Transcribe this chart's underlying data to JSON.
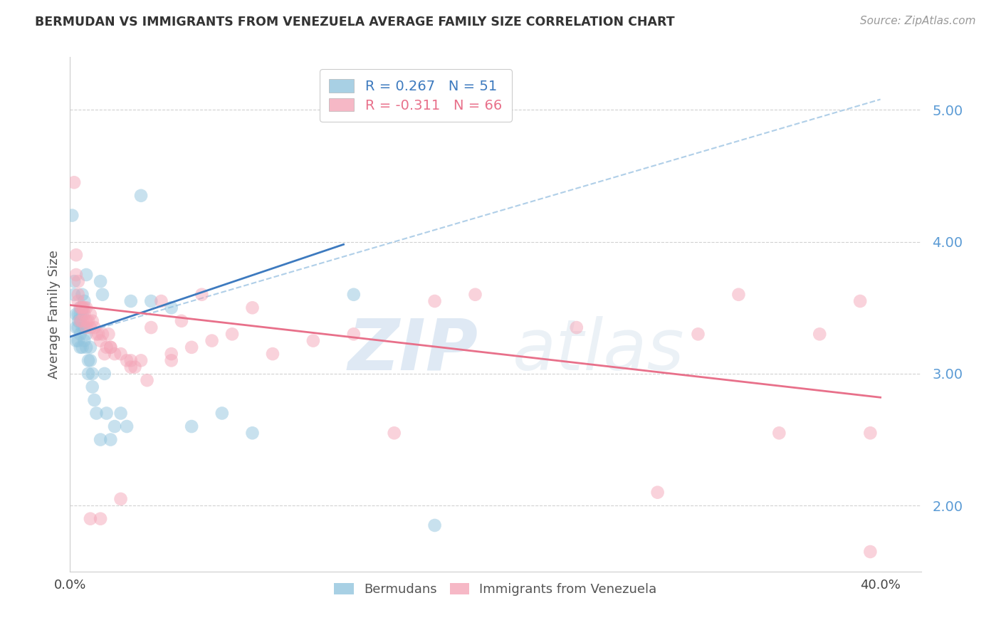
{
  "title": "BERMUDAN VS IMMIGRANTS FROM VENEZUELA AVERAGE FAMILY SIZE CORRELATION CHART",
  "source": "Source: ZipAtlas.com",
  "ylabel": "Average Family Size",
  "xlim": [
    0.0,
    0.42
  ],
  "ylim": [
    1.5,
    5.4
  ],
  "yticks": [
    2.0,
    3.0,
    4.0,
    5.0
  ],
  "xticks": [
    0.0,
    0.1,
    0.2,
    0.3,
    0.4
  ],
  "xtick_labels": [
    "0.0%",
    "",
    "",
    "",
    "40.0%"
  ],
  "legend_r_blue": "0.267",
  "legend_n_blue": "51",
  "legend_r_pink": "-0.311",
  "legend_n_pink": "66",
  "blue_label": "Bermudans",
  "pink_label": "Immigrants from Venezuela",
  "blue_color": "#92c5de",
  "pink_color": "#f4a6b8",
  "blue_line_color": "#3d7abf",
  "pink_line_color": "#e8708a",
  "dashed_line_color": "#b0cfe8",
  "watermark_zip": "ZIP",
  "watermark_atlas": "atlas",
  "blue_scatter_x": [
    0.001,
    0.002,
    0.002,
    0.003,
    0.003,
    0.003,
    0.004,
    0.004,
    0.004,
    0.005,
    0.005,
    0.005,
    0.005,
    0.006,
    0.006,
    0.006,
    0.007,
    0.007,
    0.008,
    0.008,
    0.009,
    0.009,
    0.01,
    0.01,
    0.011,
    0.011,
    0.012,
    0.013,
    0.015,
    0.016,
    0.017,
    0.018,
    0.02,
    0.022,
    0.025,
    0.028,
    0.03,
    0.035,
    0.04,
    0.05,
    0.06,
    0.075,
    0.09,
    0.14,
    0.18,
    0.015,
    0.008,
    0.006,
    0.007,
    0.005,
    0.004
  ],
  "blue_scatter_y": [
    4.2,
    3.6,
    3.7,
    3.45,
    3.35,
    3.25,
    3.45,
    3.35,
    3.25,
    3.45,
    3.4,
    3.3,
    3.2,
    3.45,
    3.35,
    3.2,
    3.35,
    3.25,
    3.3,
    3.2,
    3.1,
    3.0,
    3.2,
    3.1,
    3.0,
    2.9,
    2.8,
    2.7,
    2.5,
    3.6,
    3.0,
    2.7,
    2.5,
    2.6,
    2.7,
    2.6,
    3.55,
    4.35,
    3.55,
    3.5,
    2.6,
    2.7,
    2.55,
    3.6,
    1.85,
    3.7,
    3.75,
    3.6,
    3.55,
    3.5,
    3.4
  ],
  "pink_scatter_x": [
    0.002,
    0.003,
    0.004,
    0.004,
    0.005,
    0.005,
    0.006,
    0.006,
    0.007,
    0.007,
    0.008,
    0.008,
    0.009,
    0.01,
    0.01,
    0.011,
    0.012,
    0.013,
    0.014,
    0.015,
    0.016,
    0.017,
    0.018,
    0.019,
    0.02,
    0.022,
    0.025,
    0.028,
    0.03,
    0.032,
    0.035,
    0.038,
    0.04,
    0.045,
    0.05,
    0.055,
    0.06,
    0.065,
    0.07,
    0.08,
    0.09,
    0.1,
    0.12,
    0.14,
    0.16,
    0.18,
    0.2,
    0.25,
    0.29,
    0.31,
    0.33,
    0.35,
    0.37,
    0.39,
    0.395,
    0.395,
    0.01,
    0.015,
    0.025,
    0.003,
    0.004,
    0.006,
    0.008,
    0.02,
    0.03,
    0.05
  ],
  "pink_scatter_y": [
    4.45,
    3.9,
    3.7,
    3.55,
    3.5,
    3.4,
    3.5,
    3.4,
    3.5,
    3.45,
    3.5,
    3.35,
    3.4,
    3.45,
    3.35,
    3.4,
    3.35,
    3.3,
    3.3,
    3.25,
    3.3,
    3.15,
    3.2,
    3.3,
    3.2,
    3.15,
    3.15,
    3.1,
    3.05,
    3.05,
    3.1,
    2.95,
    3.35,
    3.55,
    3.15,
    3.4,
    3.2,
    3.6,
    3.25,
    3.3,
    3.5,
    3.15,
    3.25,
    3.3,
    2.55,
    3.55,
    3.6,
    3.35,
    2.1,
    3.3,
    3.6,
    2.55,
    3.3,
    3.55,
    2.55,
    1.65,
    1.9,
    1.9,
    2.05,
    3.75,
    3.6,
    3.5,
    3.4,
    3.2,
    3.1,
    3.1
  ],
  "blue_trend_x": [
    0.0,
    0.135
  ],
  "blue_trend_y": [
    3.28,
    3.98
  ],
  "pink_trend_x": [
    0.0,
    0.4
  ],
  "pink_trend_y": [
    3.52,
    2.82
  ],
  "dashed_trend_x": [
    0.0,
    0.4
  ],
  "dashed_trend_y": [
    3.28,
    5.08
  ]
}
